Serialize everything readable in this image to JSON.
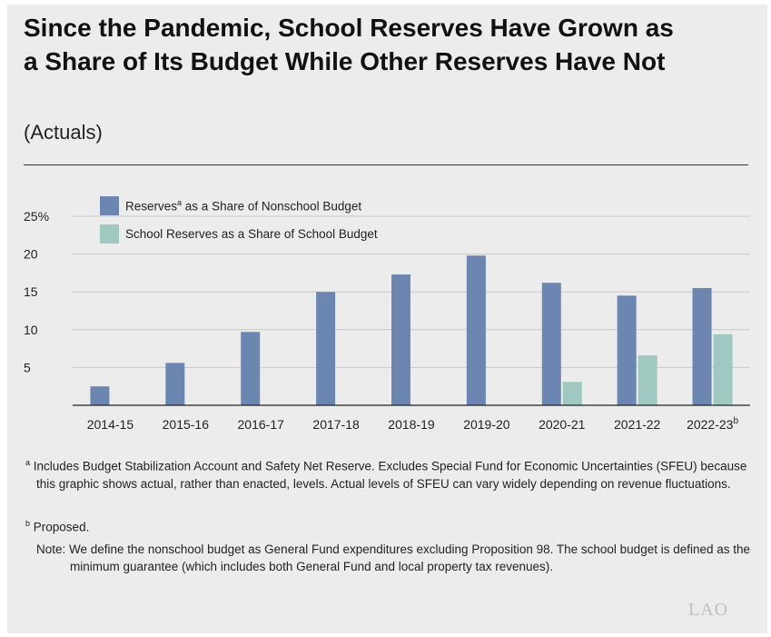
{
  "chart_data": {
    "type": "bar",
    "title": "Since the Pandemic, School Reserves Have Grown as a Share of Its Budget While Other Reserves Have Not",
    "subtitle": "(Actuals)",
    "categories": [
      "2014-15",
      "2015-16",
      "2016-17",
      "2017-18",
      "2018-19",
      "2019-20",
      "2020-21",
      "2021-22",
      "2022-23"
    ],
    "category_superscripts": [
      "",
      "",
      "",
      "",
      "",
      "",
      "",
      "",
      "b"
    ],
    "series": [
      {
        "name": "Reserves as a Share of Nonschool Budget",
        "name_superscript": "a",
        "color": "#6b86b0",
        "values": [
          2.5,
          5.6,
          9.7,
          15.0,
          17.3,
          19.8,
          16.2,
          14.5,
          15.5
        ]
      },
      {
        "name": "School Reserves as a Share of School Budget",
        "color": "#9fc9c0",
        "values": [
          null,
          null,
          null,
          null,
          null,
          null,
          3.1,
          6.6,
          9.4
        ]
      }
    ],
    "y_ticks": [
      "5",
      "10",
      "15",
      "20",
      "25%"
    ],
    "ylim": [
      0,
      25
    ],
    "grid": true,
    "legend_position": "top-left"
  },
  "footnotes": {
    "a_marker": "a",
    "a_text": "Includes Budget Stabilization Account and Safety Net Reserve. Excludes Special Fund for Economic Uncertainties (SFEU) because this graphic shows actual, rather than enacted, levels. Actual levels of SFEU can vary widely depending on revenue fluctuations.",
    "b_marker": "b",
    "b_text": "Proposed.",
    "note": "Note: We define the nonschool budget as General Fund expenditures excluding Proposition 98. The school budget is defined as the minimum guarantee (which includes both General Fund and local property tax revenues)."
  },
  "logo": "LAO"
}
